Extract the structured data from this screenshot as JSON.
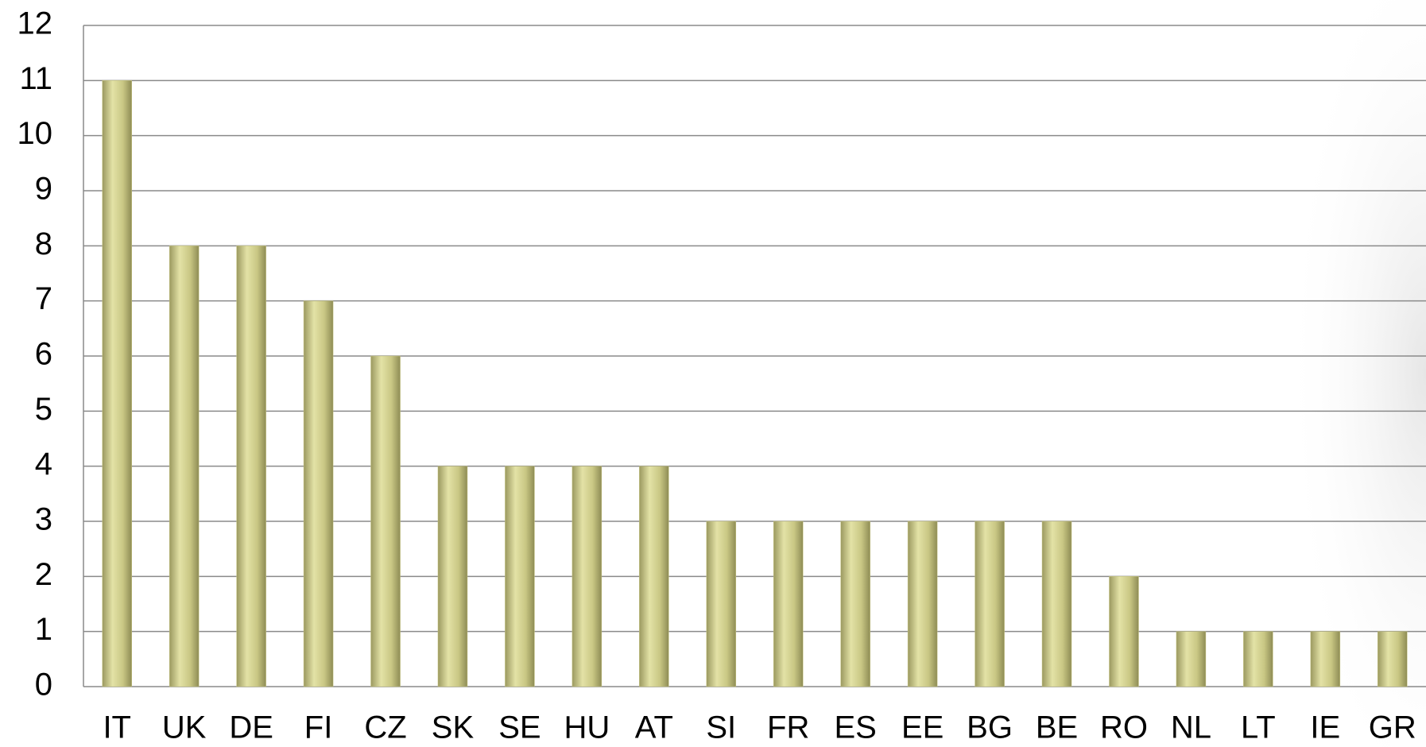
{
  "chart_data": {
    "type": "bar",
    "categories": [
      "IT",
      "UK",
      "DE",
      "FI",
      "CZ",
      "SK",
      "SE",
      "HU",
      "AT",
      "SI",
      "FR",
      "ES",
      "EE",
      "BG",
      "BE",
      "RO",
      "NL",
      "LT",
      "IE",
      "GR"
    ],
    "values": [
      11,
      8,
      8,
      7,
      6,
      4,
      4,
      4,
      4,
      3,
      3,
      3,
      3,
      3,
      3,
      2,
      1,
      1,
      1,
      1
    ],
    "color": "#c9c784",
    "ylim": [
      0,
      12
    ],
    "yticks": [
      0,
      1,
      2,
      3,
      4,
      5,
      6,
      7,
      8,
      9,
      10,
      11,
      12
    ],
    "grid": true
  }
}
